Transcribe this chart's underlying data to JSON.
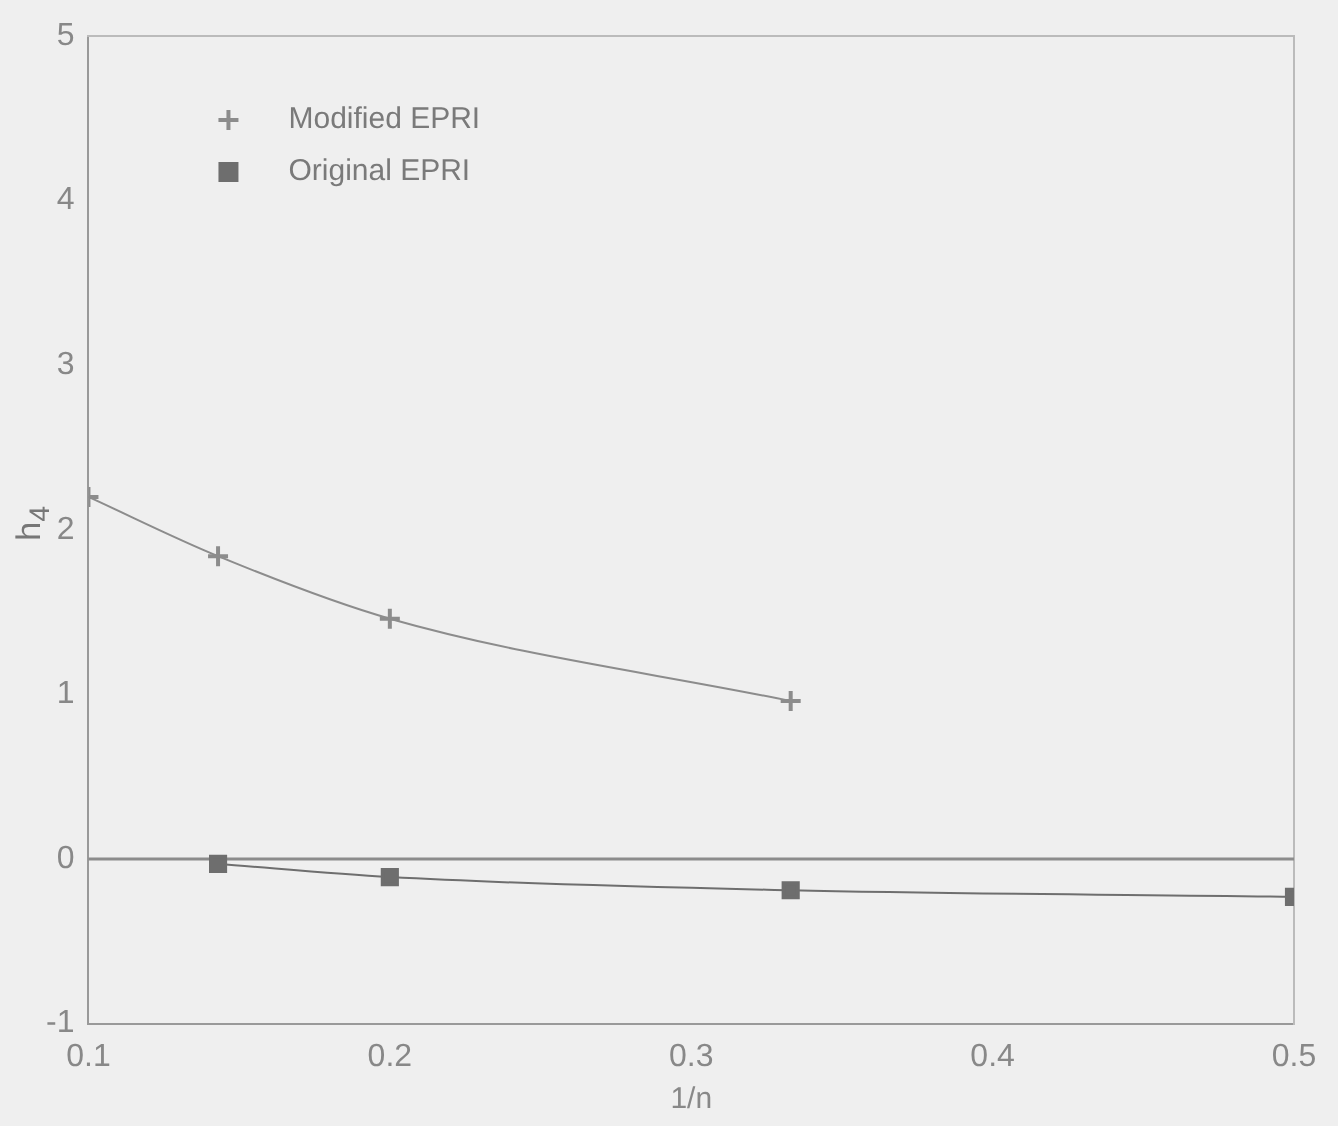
{
  "chart_data": {
    "type": "line",
    "xlabel": "1/n",
    "ylabel": "h$_{4}$",
    "xlim": [
      0.1,
      0.5
    ],
    "xticks": [
      0.1,
      0.2,
      0.3,
      0.4,
      0.5
    ],
    "ylim": [
      -1,
      5
    ],
    "yticks": [
      -1,
      0,
      1,
      2,
      3,
      4,
      5
    ],
    "grid": false,
    "legend": "top left",
    "ref_lines": [
      {
        "axis": "y",
        "value": 0,
        "color": "#8c8c8c"
      }
    ],
    "series": [
      {
        "name": "Modified EPRI",
        "color": "#8c8c8c",
        "marker": "cross",
        "x": [
          0.1,
          0.143,
          0.2,
          0.333
        ],
        "values": [
          2.2,
          1.84,
          1.46,
          0.96
        ]
      },
      {
        "name": "Original EPRI",
        "color": "#6e6e6e",
        "marker": "square",
        "x": [
          0.143,
          0.2,
          0.333,
          0.5
        ],
        "values": [
          -0.03,
          -0.11,
          -0.19,
          -0.23
        ]
      }
    ]
  }
}
